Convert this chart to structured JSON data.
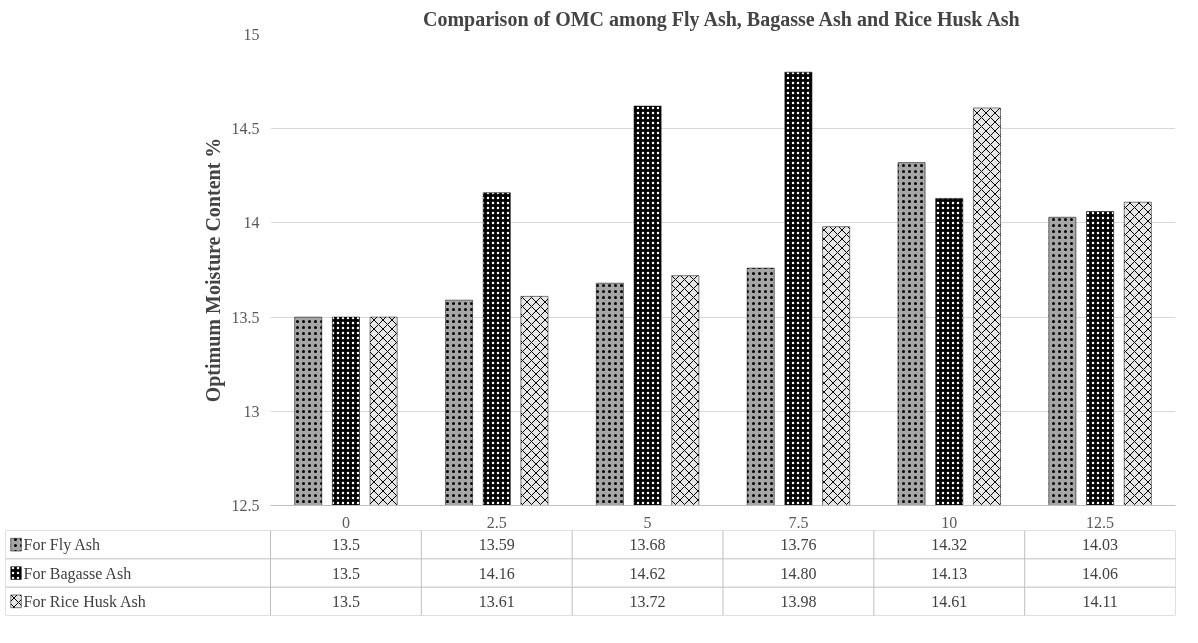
{
  "chart_data": {
    "type": "bar",
    "title": "Comparison of OMC among Fly Ash, Bagasse Ash and Rice Husk Ash",
    "ylabel": "Optimum Moisture Content %",
    "categories": [
      "0",
      "2.5",
      "5",
      "7.5",
      "10",
      "12.5"
    ],
    "series": [
      {
        "name": "For Fly Ash",
        "color": "#a6a6a6",
        "values": [
          13.5,
          13.59,
          13.68,
          13.76,
          14.32,
          14.03
        ],
        "value_labels": [
          "13.5",
          "13.59",
          "13.68",
          "13.76",
          "14.32",
          "14.03"
        ]
      },
      {
        "name": "For Bagasse Ash",
        "color": "#000000",
        "values": [
          13.5,
          14.16,
          14.62,
          14.8,
          14.13,
          14.06
        ],
        "value_labels": [
          "13.5",
          "14.16",
          "14.62",
          "14.80",
          "14.13",
          "14.06"
        ]
      },
      {
        "name": "For Rice Husk Ash",
        "color": "#e6e6e6",
        "values": [
          13.5,
          13.61,
          13.72,
          13.98,
          14.61,
          14.11
        ],
        "value_labels": [
          "13.5",
          "13.61",
          "13.72",
          "13.98",
          "14.61",
          "14.11"
        ]
      }
    ],
    "ylim": [
      12.5,
      15
    ],
    "yticks": [
      12.5,
      13,
      13.5,
      14,
      14.5,
      15
    ],
    "grid": "y",
    "legend": "bottom"
  }
}
